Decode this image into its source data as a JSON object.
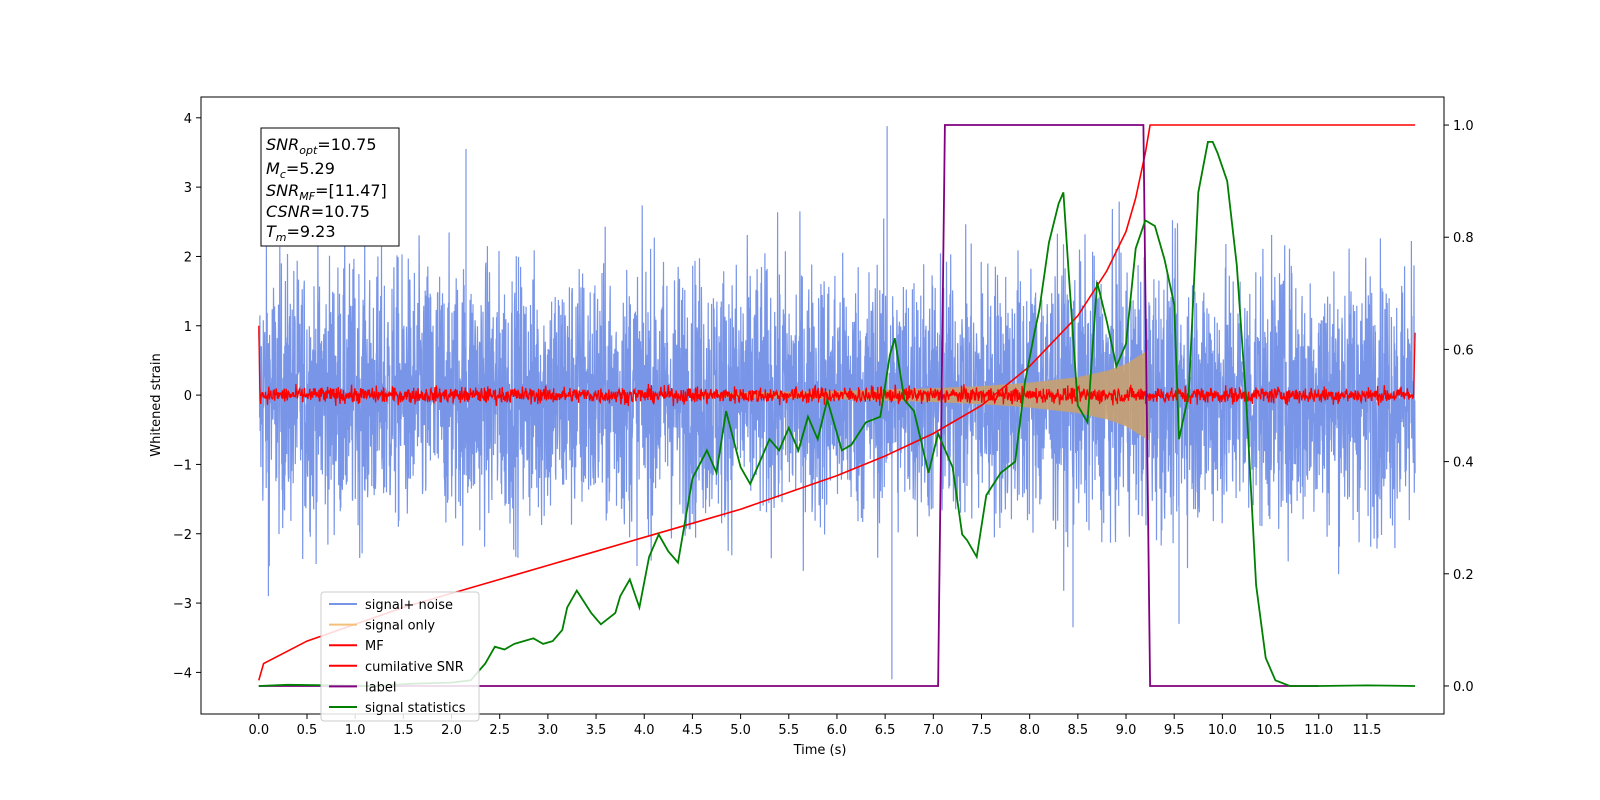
{
  "chart_data": {
    "type": "line",
    "xlabel": "Time (s)",
    "ylabel": "Whitened strain",
    "xlim": [
      -0.6,
      12.3
    ],
    "ylim": [
      -4.6,
      4.3
    ],
    "y2lim": [
      -0.05,
      1.05
    ],
    "xticks": [
      "0.0",
      "0.5",
      "1.0",
      "1.5",
      "2.0",
      "2.5",
      "3.0",
      "3.5",
      "4.0",
      "4.5",
      "5.0",
      "5.5",
      "6.0",
      "6.5",
      "7.0",
      "7.5",
      "8.0",
      "8.5",
      "9.0",
      "9.5",
      "10.0",
      "10.5",
      "11.0",
      "11.5"
    ],
    "yticks": [
      "4",
      "3",
      "2",
      "1",
      "0",
      "−1",
      "−2",
      "−3",
      "−4"
    ],
    "y2ticks": [
      "1.0",
      "0.8",
      "0.6",
      "0.4",
      "0.2",
      "0.0"
    ],
    "grid": false,
    "legend_position": "lower-left",
    "legend": [
      {
        "label": "signal+ noise",
        "color": "#7895e8"
      },
      {
        "label": "signal only",
        "color": "#f5c07a"
      },
      {
        "label": "MF",
        "color": "#ff0000"
      },
      {
        "label": "cumilative SNR",
        "color": "#ff0000"
      },
      {
        "label": "label",
        "color": "#800080"
      },
      {
        "label": "signal statistics",
        "color": "#008000"
      }
    ],
    "annotation": {
      "snr_opt_sym": "SNR",
      "snr_opt_sub": "opt",
      "snr_opt_val": "=10.75",
      "mc_sym": "M",
      "mc_sub": "c",
      "mc_val": "=5.29",
      "snr_mf_sym": "SNR",
      "snr_mf_sub": "MF",
      "snr_mf_val": "=[11.47]",
      "csnr_sym": "CSNR",
      "csnr_val": "=10.75",
      "tm_sym": "T",
      "tm_sub": "m",
      "tm_val": "=9.23"
    },
    "series": [
      {
        "name": "signal+ noise",
        "color": "#7895e8",
        "axis": "left",
        "note": "dense whitened noise, amplitude roughly within -3 to 3.5",
        "t_start": 0.0,
        "t_end": 12.0,
        "spikes": [
          [
            6.52,
            3.88
          ],
          [
            6.57,
            -4.1
          ],
          [
            9.55,
            -3.3
          ],
          [
            0.1,
            -2.9
          ],
          [
            2.15,
            3.55
          ],
          [
            8.45,
            -3.35
          ]
        ]
      },
      {
        "name": "signal only",
        "color": "#f5c07a",
        "axis": "left",
        "chirp_start": 4.5,
        "chirp_end": 9.23,
        "envelope": [
          [
            4.5,
            0.03
          ],
          [
            6.0,
            0.06
          ],
          [
            7.0,
            0.1
          ],
          [
            7.5,
            0.13
          ],
          [
            8.0,
            0.18
          ],
          [
            8.5,
            0.26
          ],
          [
            8.8,
            0.35
          ],
          [
            9.0,
            0.45
          ],
          [
            9.15,
            0.58
          ],
          [
            9.23,
            0.65
          ]
        ]
      },
      {
        "name": "MF",
        "color": "#ff0000",
        "axis": "left",
        "note": "matched filter output, noise of amplitude ~0.15 around 0, ~1.0 at both ends"
      },
      {
        "name": "cumilative SNR",
        "color": "#ff0000",
        "axis": "right",
        "points": [
          [
            0.0,
            0.01
          ],
          [
            0.05,
            0.04
          ],
          [
            0.5,
            0.08
          ],
          [
            1.0,
            0.11
          ],
          [
            1.5,
            0.14
          ],
          [
            2.0,
            0.165
          ],
          [
            2.5,
            0.19
          ],
          [
            3.0,
            0.215
          ],
          [
            3.5,
            0.24
          ],
          [
            4.0,
            0.265
          ],
          [
            4.5,
            0.29
          ],
          [
            5.0,
            0.315
          ],
          [
            5.5,
            0.345
          ],
          [
            6.0,
            0.375
          ],
          [
            6.5,
            0.41
          ],
          [
            7.0,
            0.45
          ],
          [
            7.5,
            0.5
          ],
          [
            8.0,
            0.57
          ],
          [
            8.5,
            0.66
          ],
          [
            8.8,
            0.74
          ],
          [
            9.0,
            0.81
          ],
          [
            9.1,
            0.87
          ],
          [
            9.2,
            0.95
          ],
          [
            9.25,
            1.0
          ],
          [
            12.0,
            1.0
          ]
        ]
      },
      {
        "name": "label",
        "color": "#800080",
        "axis": "right",
        "points": [
          [
            0.0,
            0.0
          ],
          [
            7.05,
            0.0
          ],
          [
            7.12,
            1.0
          ],
          [
            9.18,
            1.0
          ],
          [
            9.25,
            0.0
          ],
          [
            11.0,
            0.0
          ]
        ]
      },
      {
        "name": "signal statistics",
        "color": "#008000",
        "axis": "right",
        "points": [
          [
            0.0,
            0.0
          ],
          [
            0.3,
            0.002
          ],
          [
            0.8,
            0.001
          ],
          [
            1.2,
            0.0
          ],
          [
            1.6,
            0.004
          ],
          [
            2.0,
            0.006
          ],
          [
            2.2,
            0.01
          ],
          [
            2.35,
            0.04
          ],
          [
            2.45,
            0.07
          ],
          [
            2.55,
            0.065
          ],
          [
            2.65,
            0.075
          ],
          [
            2.75,
            0.08
          ],
          [
            2.85,
            0.085
          ],
          [
            2.95,
            0.075
          ],
          [
            3.05,
            0.08
          ],
          [
            3.15,
            0.1
          ],
          [
            3.2,
            0.14
          ],
          [
            3.3,
            0.17
          ],
          [
            3.45,
            0.13
          ],
          [
            3.55,
            0.11
          ],
          [
            3.7,
            0.13
          ],
          [
            3.75,
            0.16
          ],
          [
            3.85,
            0.19
          ],
          [
            3.95,
            0.14
          ],
          [
            4.05,
            0.23
          ],
          [
            4.15,
            0.27
          ],
          [
            4.25,
            0.24
          ],
          [
            4.35,
            0.22
          ],
          [
            4.5,
            0.37
          ],
          [
            4.65,
            0.42
          ],
          [
            4.75,
            0.38
          ],
          [
            4.85,
            0.49
          ],
          [
            5.0,
            0.39
          ],
          [
            5.1,
            0.36
          ],
          [
            5.2,
            0.4
          ],
          [
            5.3,
            0.44
          ],
          [
            5.4,
            0.42
          ],
          [
            5.5,
            0.46
          ],
          [
            5.6,
            0.42
          ],
          [
            5.7,
            0.48
          ],
          [
            5.8,
            0.44
          ],
          [
            5.9,
            0.51
          ],
          [
            6.0,
            0.45
          ],
          [
            6.05,
            0.42
          ],
          [
            6.15,
            0.43
          ],
          [
            6.3,
            0.47
          ],
          [
            6.45,
            0.48
          ],
          [
            6.55,
            0.59
          ],
          [
            6.6,
            0.62
          ],
          [
            6.7,
            0.51
          ],
          [
            6.8,
            0.49
          ],
          [
            6.95,
            0.38
          ],
          [
            7.05,
            0.45
          ],
          [
            7.1,
            0.43
          ],
          [
            7.2,
            0.39
          ],
          [
            7.3,
            0.27
          ],
          [
            7.35,
            0.26
          ],
          [
            7.45,
            0.23
          ],
          [
            7.55,
            0.34
          ],
          [
            7.7,
            0.38
          ],
          [
            7.85,
            0.4
          ],
          [
            7.95,
            0.54
          ],
          [
            8.05,
            0.63
          ],
          [
            8.1,
            0.67
          ],
          [
            8.2,
            0.79
          ],
          [
            8.3,
            0.86
          ],
          [
            8.35,
            0.88
          ],
          [
            8.4,
            0.75
          ],
          [
            8.5,
            0.5
          ],
          [
            8.6,
            0.47
          ],
          [
            8.7,
            0.72
          ],
          [
            8.8,
            0.65
          ],
          [
            8.9,
            0.57
          ],
          [
            9.0,
            0.61
          ],
          [
            9.1,
            0.78
          ],
          [
            9.2,
            0.83
          ],
          [
            9.3,
            0.82
          ],
          [
            9.4,
            0.76
          ],
          [
            9.5,
            0.68
          ],
          [
            9.55,
            0.44
          ],
          [
            9.65,
            0.52
          ],
          [
            9.75,
            0.88
          ],
          [
            9.85,
            0.97
          ],
          [
            9.9,
            0.97
          ],
          [
            9.95,
            0.95
          ],
          [
            10.05,
            0.9
          ],
          [
            10.15,
            0.75
          ],
          [
            10.25,
            0.5
          ],
          [
            10.35,
            0.18
          ],
          [
            10.45,
            0.05
          ],
          [
            10.55,
            0.01
          ],
          [
            10.7,
            0.0
          ],
          [
            11.0,
            0.0
          ],
          [
            11.5,
            0.001
          ],
          [
            12.0,
            0.0
          ]
        ]
      }
    ]
  }
}
